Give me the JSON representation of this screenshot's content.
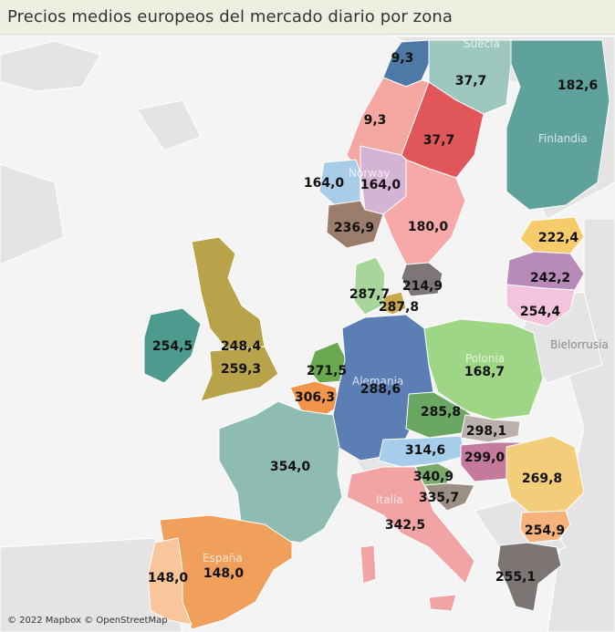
{
  "title": "Precios medios europeos del mercado diario por zona",
  "attribution": "© 2022 Mapbox © OpenStreetMap",
  "country_labels": {
    "suecia": "Suecia",
    "finlandia": "Finlandia",
    "norway": "Norway",
    "polonia": "Polonia",
    "alemania": "Alemania",
    "bielorrusia": "Bielorrusia",
    "italia": "Italia",
    "espana": "España"
  },
  "zones": [
    {
      "id": "no4",
      "value": "9,3",
      "color": "#4e79a7"
    },
    {
      "id": "se1",
      "value": "37,7",
      "color": "#9dc7bf"
    },
    {
      "id": "fi",
      "value": "182,6",
      "color": "#5fa29c"
    },
    {
      "id": "no3",
      "value": "9,3",
      "color": "#f4a6a0"
    },
    {
      "id": "se2",
      "value": "37,7",
      "color": "#e15759"
    },
    {
      "id": "no5",
      "value": "164,0",
      "color": "#a9cde9"
    },
    {
      "id": "no1",
      "value": "164,0",
      "color": "#d4b3d5"
    },
    {
      "id": "no2",
      "value": "236,9",
      "color": "#9c7d6c"
    },
    {
      "id": "se3",
      "value": "180,0",
      "color": "#f7a9a7"
    },
    {
      "id": "se4",
      "value": "214,9",
      "color": "#7e7676"
    },
    {
      "id": "ee",
      "value": "222,4",
      "color": "#f6cc6b"
    },
    {
      "id": "lv",
      "value": "242,2",
      "color": "#b88ab8"
    },
    {
      "id": "lt",
      "value": "254,4",
      "color": "#f3c4dc"
    },
    {
      "id": "dk1",
      "value": "287,7",
      "color": "#a8d69a"
    },
    {
      "id": "dk2",
      "value": "287,8",
      "color": "#c8a847"
    },
    {
      "id": "ie",
      "value": "254,5",
      "color": "#4d9a8e"
    },
    {
      "id": "gb_n",
      "value": "248,4",
      "color": "#b9a34a"
    },
    {
      "id": "gb_s",
      "value": "259,3",
      "color": "#b9a34a"
    },
    {
      "id": "nl",
      "value": "271,5",
      "color": "#6aa84f"
    },
    {
      "id": "be",
      "value": "306,3",
      "color": "#f0954a"
    },
    {
      "id": "de",
      "value": "288,6",
      "color": "#5b7fb5"
    },
    {
      "id": "pl",
      "value": "168,7",
      "color": "#9ed685"
    },
    {
      "id": "cz",
      "value": "285,8",
      "color": "#6aa762"
    },
    {
      "id": "sk",
      "value": "298,1",
      "color": "#bab0ac"
    },
    {
      "id": "at",
      "value": "314,6",
      "color": "#a6cdea"
    },
    {
      "id": "hu",
      "value": "299,0",
      "color": "#c57a9d"
    },
    {
      "id": "ro",
      "value": "269,8",
      "color": "#f3cd7a"
    },
    {
      "id": "fr",
      "value": "354,0",
      "color": "#8fbcb2"
    },
    {
      "id": "si",
      "value": "340,9",
      "color": "#7aaa6a"
    },
    {
      "id": "hr",
      "value": "335,7",
      "color": "#9c8f84"
    },
    {
      "id": "it",
      "value": "342,5",
      "color": "#f2a3a3"
    },
    {
      "id": "bg",
      "value": "254,9",
      "color": "#f5b27a"
    },
    {
      "id": "es",
      "value": "148,0",
      "color": "#f0a05a"
    },
    {
      "id": "pt",
      "value": "148,0",
      "color": "#f8c69a"
    },
    {
      "id": "gr",
      "value": "255,1",
      "color": "#7d7474"
    }
  ]
}
